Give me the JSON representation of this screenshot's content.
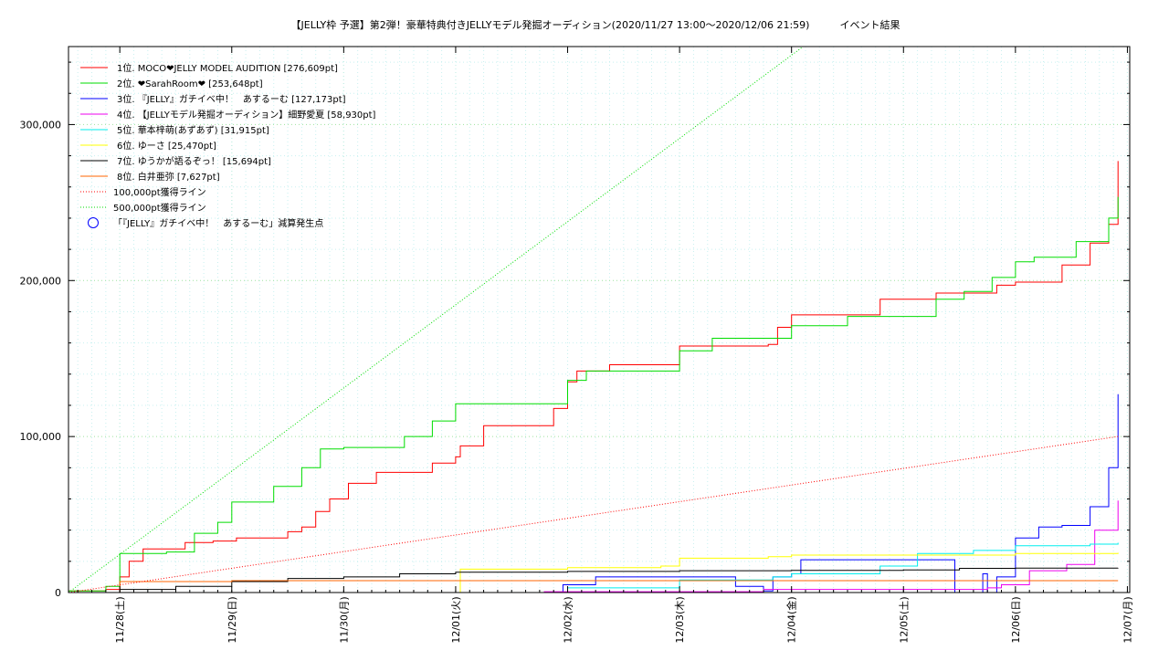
{
  "chart_data": {
    "type": "line",
    "title": "【JELLY枠 予選】第2弾！豪華特典付きJELLYモデル発掘オーディション(2020/11/27 13:00～2020/12/06 21:59)　　　イベント結果",
    "xlabel": "",
    "ylabel": "",
    "ylim": [
      0,
      350000
    ],
    "y_ticks": [
      0,
      100000,
      200000,
      300000
    ],
    "y_tick_labels": [
      "0",
      "100,000",
      "200,000",
      "300,000"
    ],
    "xlim": [
      "2020-11-27T13:00",
      "2020-12-07T00:30"
    ],
    "x_ticks": [
      "2020-11-28",
      "2020-11-29",
      "2020-11-30",
      "2020-12-01",
      "2020-12-02",
      "2020-12-03",
      "2020-12-04",
      "2020-12-05",
      "2020-12-06",
      "2020-12-07"
    ],
    "x_tick_labels": [
      "11/28(土)",
      "11/29(日)",
      "11/30(月)",
      "12/01(火)",
      "12/02(水)",
      "12/03(木)",
      "12/04(金)",
      "12/05(土)",
      "12/06(日)",
      "12/07(月)"
    ],
    "grid": true,
    "legend_position": "top-left",
    "series": [
      {
        "name": "1位. MOCO❤JELLY MODEL AUDITION [276,609pt]",
        "color": "#ff0000",
        "style": "solid",
        "x": [
          "2020-11-27T13:00",
          "2020-11-27T21:00",
          "2020-11-28T00:00",
          "2020-11-28T02:00",
          "2020-11-28T05:00",
          "2020-11-28T14:00",
          "2020-11-28T20:00",
          "2020-11-29T01:00",
          "2020-11-29T12:00",
          "2020-11-29T15:00",
          "2020-11-29T18:00",
          "2020-11-29T21:00",
          "2020-11-30T01:00",
          "2020-11-30T07:00",
          "2020-11-30T12:00",
          "2020-11-30T19:00",
          "2020-12-01T00:00",
          "2020-12-01T01:00",
          "2020-12-01T06:00",
          "2020-12-01T19:00",
          "2020-12-01T21:00",
          "2020-12-02T00:00",
          "2020-12-02T02:00",
          "2020-12-02T09:00",
          "2020-12-02T22:00",
          "2020-12-03T00:00",
          "2020-12-03T19:00",
          "2020-12-03T21:00",
          "2020-12-04T00:00",
          "2020-12-04T19:00",
          "2020-12-04T22:00",
          "2020-12-05T07:00",
          "2020-12-05T20:00",
          "2020-12-06T00:00",
          "2020-12-06T10:00",
          "2020-12-06T16:00",
          "2020-12-06T20:00",
          "2020-12-06T22:00"
        ],
        "y": [
          1000,
          2000,
          10000,
          20000,
          28000,
          32000,
          33000,
          35000,
          39000,
          42000,
          52000,
          60000,
          70000,
          77000,
          77000,
          83000,
          87000,
          94000,
          107000,
          107000,
          118000,
          135000,
          142000,
          146000,
          146000,
          158000,
          159000,
          170000,
          178000,
          188000,
          188000,
          192000,
          197000,
          199000,
          210000,
          224000,
          236000,
          276609
        ]
      },
      {
        "name": "2位. ❤SarahRoom❤ [253,648pt]",
        "color": "#00dd00",
        "style": "solid",
        "x": [
          "2020-11-27T13:00",
          "2020-11-27T21:00",
          "2020-11-28T00:00",
          "2020-11-28T10:00",
          "2020-11-28T16:00",
          "2020-11-28T21:00",
          "2020-11-29T00:00",
          "2020-11-29T09:00",
          "2020-11-29T15:00",
          "2020-11-29T19:00",
          "2020-11-30T00:00",
          "2020-11-30T06:00",
          "2020-11-30T13:00",
          "2020-11-30T19:00",
          "2020-12-01T00:00",
          "2020-12-01T04:00",
          "2020-12-01T13:00",
          "2020-12-02T00:00",
          "2020-12-02T04:00",
          "2020-12-02T13:00",
          "2020-12-03T00:00",
          "2020-12-03T07:00",
          "2020-12-03T13:00",
          "2020-12-04T00:00",
          "2020-12-04T12:00",
          "2020-12-05T00:00",
          "2020-12-05T07:00",
          "2020-12-05T13:00",
          "2020-12-05T19:00",
          "2020-12-06T00:00",
          "2020-12-06T04:00",
          "2020-12-06T13:00",
          "2020-12-06T20:00",
          "2020-12-06T22:00"
        ],
        "y": [
          1000,
          4000,
          25000,
          26000,
          38000,
          45000,
          58000,
          68000,
          80000,
          92000,
          93000,
          93000,
          100000,
          110000,
          121000,
          121000,
          121000,
          136000,
          142000,
          142000,
          155000,
          163000,
          163000,
          171000,
          177000,
          177000,
          188000,
          193000,
          202000,
          212000,
          215000,
          225000,
          240000,
          253648
        ]
      },
      {
        "name": "3位. 『JELLY』ガチイベ中！　あするーむ [127,173pt]",
        "color": "#0000ff",
        "style": "solid",
        "x": [
          "2020-11-27T13:00",
          "2020-12-01T21:00",
          "2020-12-01T23:00",
          "2020-12-02T06:00",
          "2020-12-03T12:00",
          "2020-12-03T18:00",
          "2020-12-03T20:00",
          "2020-12-04T00:00",
          "2020-12-04T02:00",
          "2020-12-05T11:00",
          "2020-12-05T13:00",
          "2020-12-05T17:00",
          "2020-12-05T18:00",
          "2020-12-05T20:00",
          "2020-12-06T00:00",
          "2020-12-06T05:00",
          "2020-12-06T10:00",
          "2020-12-06T16:00",
          "2020-12-06T20:00",
          "2020-12-06T22:00"
        ],
        "y": [
          0,
          0,
          5000,
          10000,
          4000,
          1000,
          10000,
          12000,
          21000,
          0,
          0,
          12000,
          0,
          10000,
          35000,
          42000,
          43000,
          55000,
          80000,
          127173
        ]
      },
      {
        "name": "4位. 【JELLYモデル発掘オーディション】細野愛夏 [58,930pt]",
        "color": "#ee00ee",
        "style": "solid",
        "x": [
          "2020-11-27T13:00",
          "2020-12-01T19:00",
          "2020-12-03T18:00",
          "2020-12-05T18:00",
          "2020-12-05T21:00",
          "2020-12-06T03:00",
          "2020-12-06T11:00",
          "2020-12-06T17:00",
          "2020-12-06T22:00"
        ],
        "y": [
          0,
          500,
          2000,
          3000,
          5000,
          14000,
          18000,
          40000,
          58930
        ]
      },
      {
        "name": "5位. 華本梓萌(あずあず) [31,915pt]",
        "color": "#00eeee",
        "style": "solid",
        "x": [
          "2020-11-27T13:00",
          "2020-12-01T20:00",
          "2020-12-02T00:00",
          "2020-12-03T00:00",
          "2020-12-03T20:00",
          "2020-12-04T00:00",
          "2020-12-04T19:00",
          "2020-12-05T03:00",
          "2020-12-05T15:00",
          "2020-12-06T00:00",
          "2020-12-06T16:00",
          "2020-12-06T22:00"
        ],
        "y": [
          0,
          0,
          3000,
          8000,
          10000,
          12000,
          17000,
          25000,
          27000,
          30000,
          31000,
          31915
        ]
      },
      {
        "name": "6位. ゆーさ [25,470pt]",
        "color": "#ffff00",
        "style": "solid",
        "x": [
          "2020-11-27T13:00",
          "2020-11-30T21:00",
          "2020-12-01T01:00",
          "2020-12-01T13:00",
          "2020-12-02T00:00",
          "2020-12-02T20:00",
          "2020-12-03T00:00",
          "2020-12-03T19:00",
          "2020-12-04T00:00",
          "2020-12-05T00:00",
          "2020-12-06T00:00",
          "2020-12-06T22:00"
        ],
        "y": [
          0,
          0,
          15000,
          15000,
          16000,
          17000,
          22000,
          23000,
          24000,
          24000,
          25000,
          25470
        ]
      },
      {
        "name": "7位. ゆうかが語るぞっ！ [15,694pt]",
        "color": "#000000",
        "style": "solid",
        "x": [
          "2020-11-27T13:00",
          "2020-11-28T00:00",
          "2020-11-28T12:00",
          "2020-11-29T00:00",
          "2020-11-29T12:00",
          "2020-11-30T00:00",
          "2020-11-30T12:00",
          "2020-12-01T00:00",
          "2020-12-02T00:00",
          "2020-12-03T00:00",
          "2020-12-04T00:00",
          "2020-12-05T00:00",
          "2020-12-05T12:00",
          "2020-12-06T00:00",
          "2020-12-06T22:00"
        ],
        "y": [
          0,
          2000,
          4000,
          7000,
          9000,
          10000,
          12000,
          13000,
          13500,
          14000,
          14200,
          14500,
          15500,
          15600,
          15694
        ]
      },
      {
        "name": "8位. 白井亜弥 [7,627pt]",
        "color": "#ff6600",
        "style": "solid",
        "x": [
          "2020-11-27T13:00",
          "2020-11-28T00:00",
          "2020-11-29T00:00",
          "2020-12-06T22:00"
        ],
        "y": [
          0,
          7000,
          7600,
          7627
        ]
      },
      {
        "name": "100,000pt獲得ライン",
        "color": "#ff0000",
        "style": "dotted",
        "x": [
          "2020-11-27T13:00",
          "2020-12-06T22:00"
        ],
        "y": [
          0,
          100000
        ]
      },
      {
        "name": "500,000pt獲得ライン",
        "color": "#00dd00",
        "style": "dotted",
        "x": [
          "2020-11-27T13:00",
          "2020-12-06T22:00"
        ],
        "y": [
          0,
          500000
        ]
      }
    ],
    "markers": [
      {
        "name": "「『JELLY』ガチイベ中！　あするーむ」減算発生点",
        "color": "#0000ff",
        "shape": "circle"
      }
    ]
  }
}
